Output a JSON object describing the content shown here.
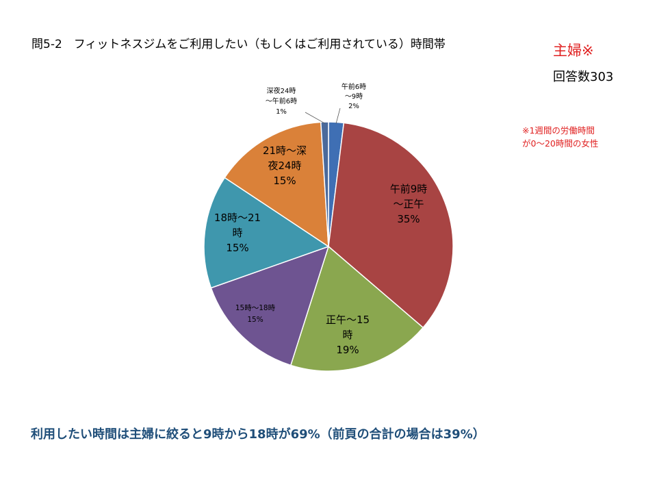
{
  "title": "問5-2　フィットネスジムをご利用したい（もしくはご利用されている）時間帯",
  "segment_label": "主婦※",
  "respondents": "回答数303",
  "note": "※1週間の労働時間\nが0～20時間の女性",
  "conclusion": "利用したい時間は主婦に絞ると9時から18時が69%（前頁の合計の場合は39%）",
  "chart_data": {
    "type": "pie",
    "title": "",
    "slices": [
      {
        "label": "午前6時～9時",
        "label_lines": [
          "午前6時",
          "～9時",
          "2%"
        ],
        "value": 2,
        "color": "#3f6fb4"
      },
      {
        "label": "午前9時～正午",
        "label_lines": [
          "午前9時",
          "～正午",
          "35%"
        ],
        "value": 35,
        "color": "#a84443"
      },
      {
        "label": "正午～15時",
        "label_lines": [
          "正午～15",
          "時",
          "19%"
        ],
        "value": 19,
        "color": "#8aa74f"
      },
      {
        "label": "15時～18時",
        "label_lines": [
          "15時～18時",
          "15%"
        ],
        "value": 15,
        "color": "#6e5491"
      },
      {
        "label": "18時～21時",
        "label_lines": [
          "18時～21",
          "時",
          "15%"
        ],
        "value": 15,
        "color": "#3f97ad"
      },
      {
        "label": "21時～深夜24時",
        "label_lines": [
          "21時～深",
          "夜24時",
          "15%"
        ],
        "value": 15,
        "color": "#da8139"
      },
      {
        "label": "深夜24時～午前6時",
        "label_lines": [
          "深夜24時",
          "～午前6時",
          "1%"
        ],
        "value": 1,
        "color": "#4b6a9b"
      }
    ]
  }
}
